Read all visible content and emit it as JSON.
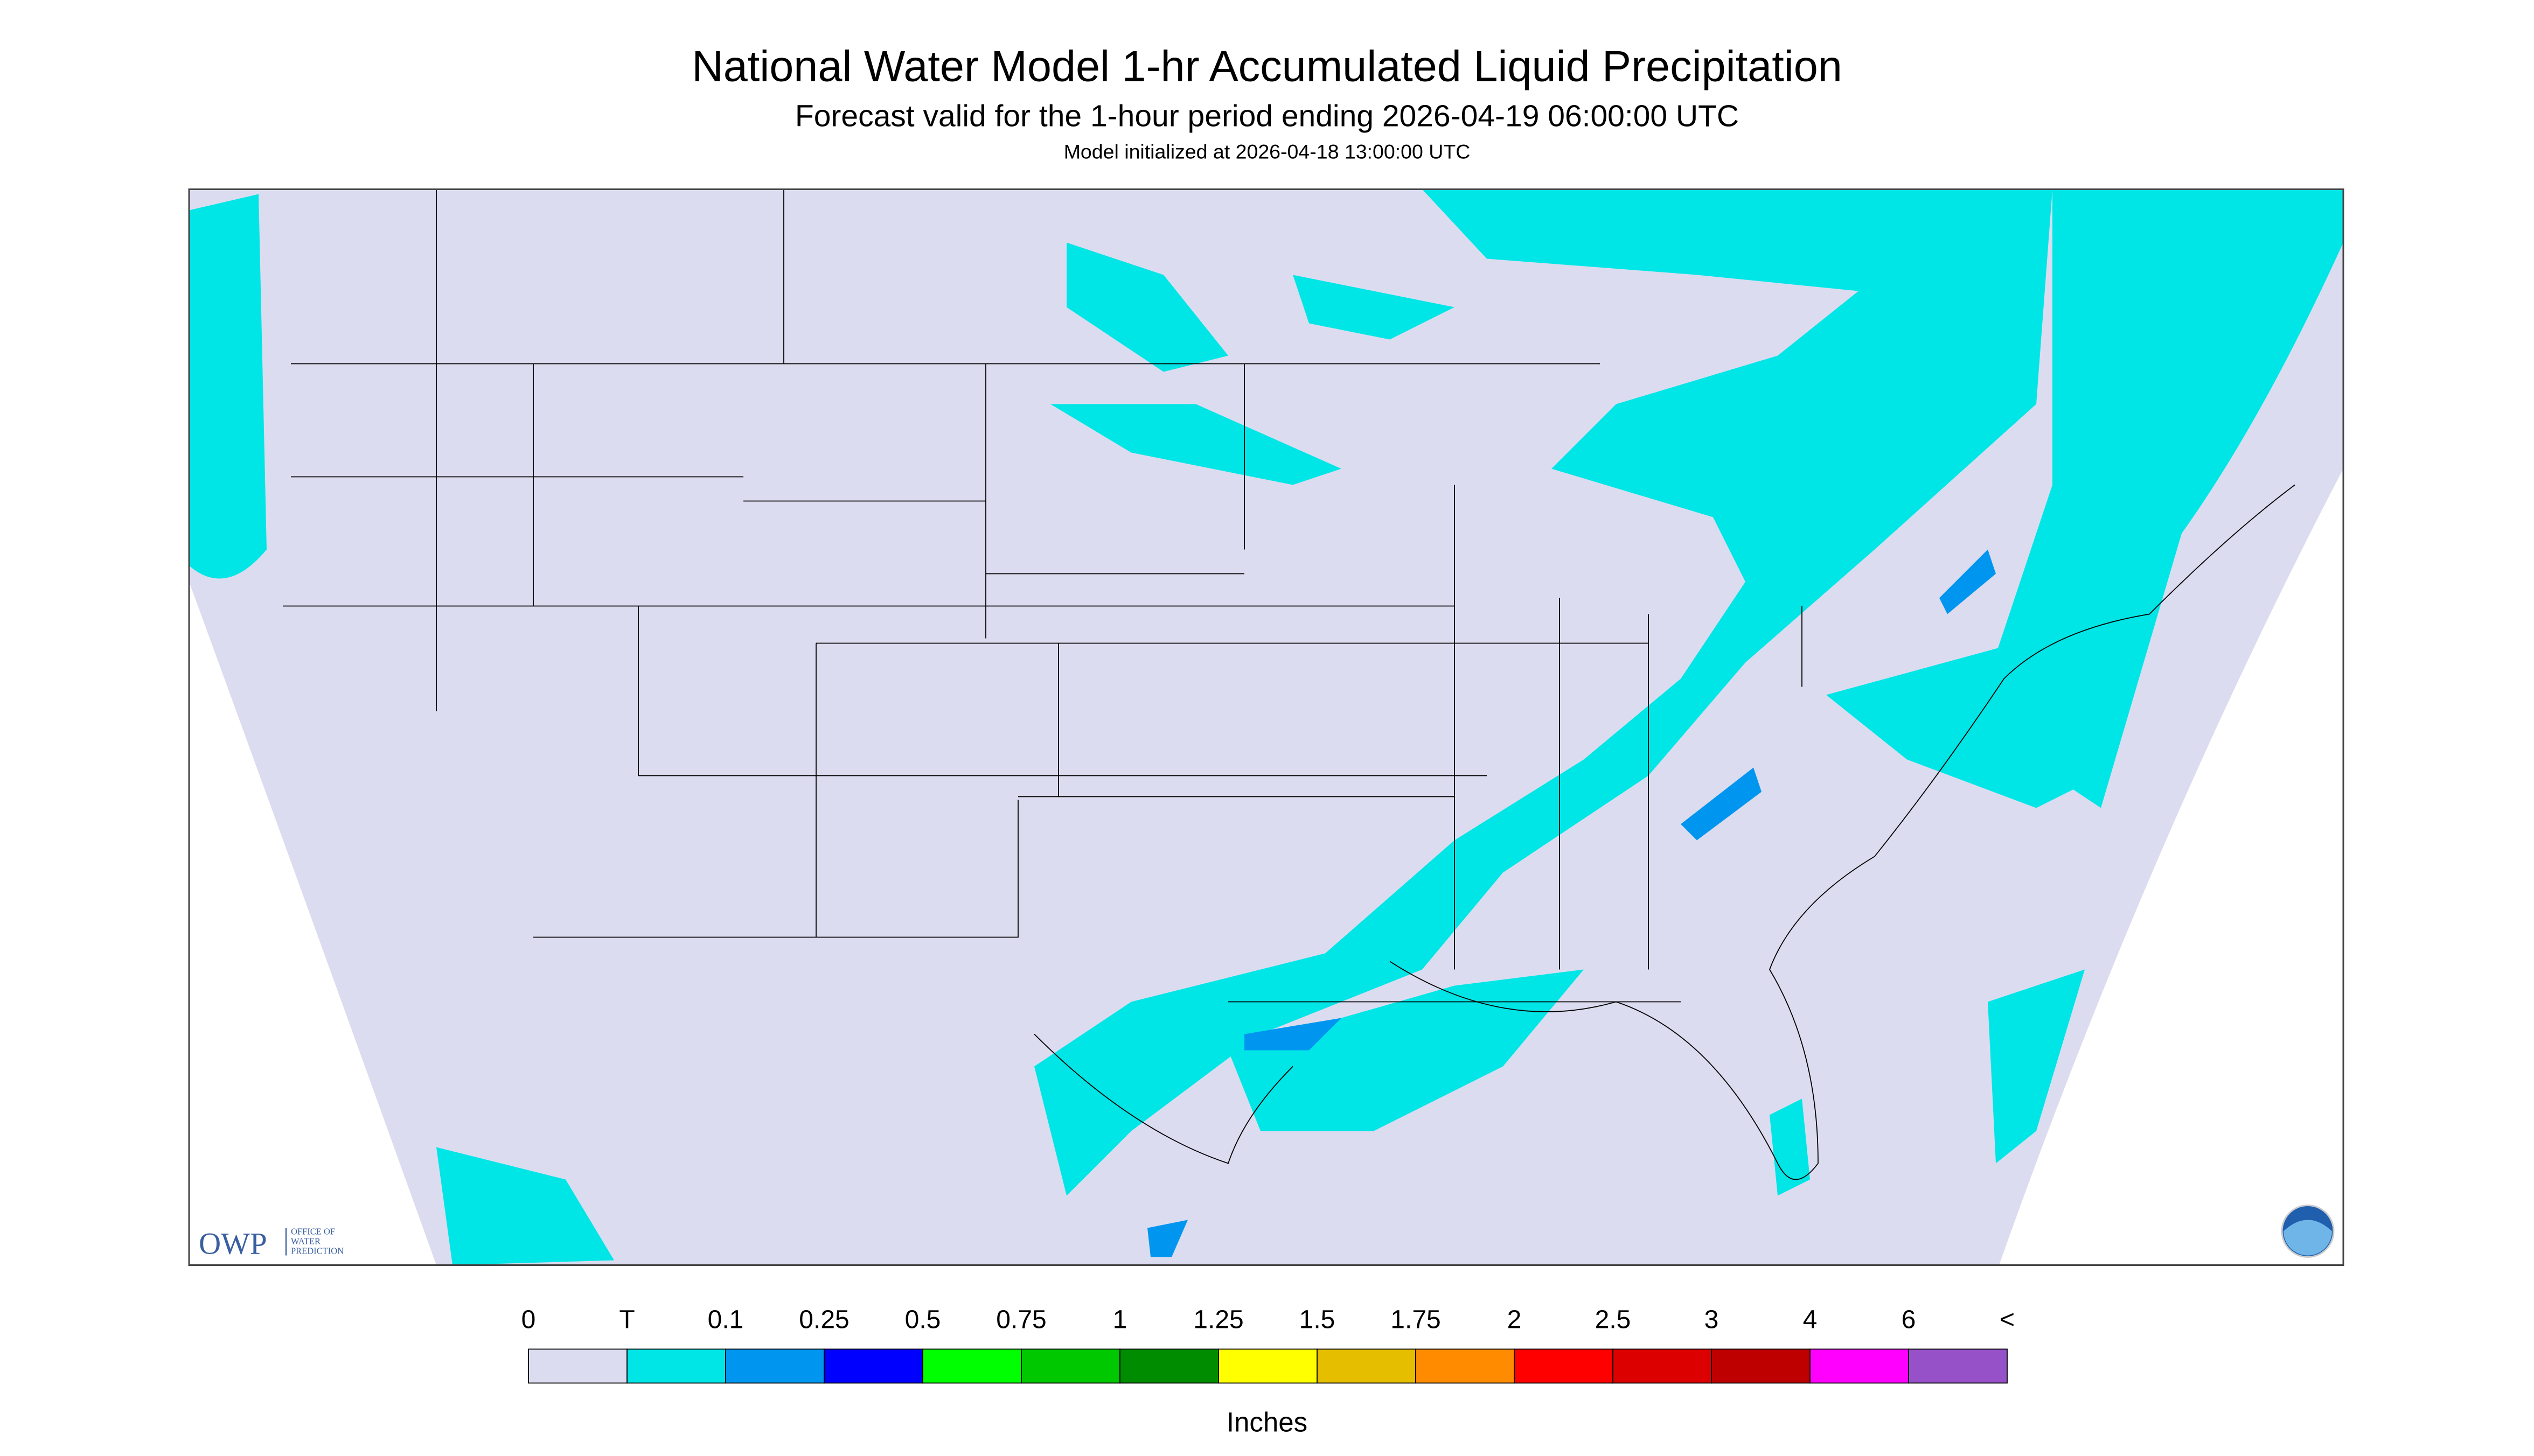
{
  "header": {
    "title": "National Water Model 1-hr Accumulated Liquid Precipitation",
    "subtitle": "Forecast valid for the 1-hour period ending 2026-04-19 06:00:00 UTC",
    "init": "Model initialized at 2026-04-18 13:00:00 UTC"
  },
  "logo": {
    "name": "OWP",
    "office": [
      "OFFICE OF",
      "WATER",
      "PREDICTION"
    ]
  },
  "legend": {
    "labels": [
      "0",
      "T",
      "0.1",
      "0.25",
      "0.5",
      "0.75",
      "1",
      "1.25",
      "1.5",
      "1.75",
      "2",
      "2.5",
      "3",
      "4",
      "6",
      "<"
    ],
    "colors": [
      "#dcdcf0",
      "#00e6e6",
      "#0096f0",
      "#0000ff",
      "#00ff00",
      "#00c800",
      "#008c00",
      "#ffff00",
      "#e6be00",
      "#ff8c00",
      "#ff0000",
      "#dc0000",
      "#be0000",
      "#ff00ff",
      "#9650c8"
    ],
    "unit": "Inches"
  }
}
